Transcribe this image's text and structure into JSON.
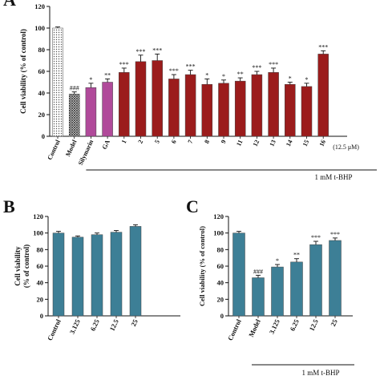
{
  "panel_letters": {
    "a": "A",
    "b": "B",
    "c": "C"
  },
  "chart_data": [
    {
      "type": "bar",
      "panel": "A",
      "ylabel": "Cell viability (% of control)",
      "ylim": [
        0,
        120
      ],
      "yticks": [
        0,
        20,
        40,
        60,
        80,
        100,
        120
      ],
      "categories": [
        "Control",
        "Model",
        "Silymarin",
        "GA",
        "1",
        "2",
        "5",
        "6",
        "7",
        "8",
        "9",
        "11",
        "12",
        "13",
        "14",
        "15",
        "16"
      ],
      "values": [
        100,
        39,
        45,
        50,
        59,
        69,
        70,
        53,
        57,
        48,
        49,
        51,
        57,
        59,
        48,
        46,
        76
      ],
      "errors": [
        1,
        2,
        4,
        3,
        4,
        6,
        6,
        4,
        4,
        5,
        3,
        3,
        3,
        4,
        2,
        3,
        3
      ],
      "significance": [
        "",
        "###",
        "*",
        "**",
        "***",
        "***",
        "***",
        "***",
        "***",
        "*",
        "*",
        "**",
        "***",
        "***",
        "*",
        "*",
        "***"
      ],
      "fills": [
        "dotted",
        "grid",
        "#b04a9a",
        "#b04a9a",
        "#9b1c1c",
        "#9b1c1c",
        "#9b1c1c",
        "#9b1c1c",
        "#9b1c1c",
        "#9b1c1c",
        "#9b1c1c",
        "#9b1c1c",
        "#9b1c1c",
        "#9b1c1c",
        "#9b1c1c",
        "#9b1c1c",
        "#9b1c1c"
      ],
      "concentration_note": "(12.5 μM)",
      "treatment_label": "1 mM t-BHP"
    },
    {
      "type": "bar",
      "panel": "B",
      "ylabel": "Cell viability\n(% of control)",
      "ylim": [
        0,
        120
      ],
      "yticks": [
        0,
        20,
        40,
        60,
        80,
        100,
        120
      ],
      "categories": [
        "Control",
        "3.125",
        "6.25",
        "12.5",
        "25"
      ],
      "values": [
        100,
        95,
        98,
        101,
        108
      ],
      "errors": [
        2,
        1.5,
        2,
        2,
        2
      ],
      "fill": "#3d7f96"
    },
    {
      "type": "bar",
      "panel": "C",
      "ylabel": "Cell viability (% of control)",
      "ylim": [
        0,
        120
      ],
      "yticks": [
        0,
        20,
        40,
        60,
        80,
        100,
        120
      ],
      "categories": [
        "Control",
        "Model",
        "3.125",
        "6.25",
        "12.5",
        "25"
      ],
      "values": [
        100,
        46,
        59,
        65,
        86,
        91
      ],
      "errors": [
        2,
        3,
        3,
        4,
        4,
        3
      ],
      "significance": [
        "",
        "###",
        "*",
        "**",
        "***",
        "***"
      ],
      "fill": "#3d7f96",
      "treatment_label": "1 mM t-BHP"
    }
  ]
}
